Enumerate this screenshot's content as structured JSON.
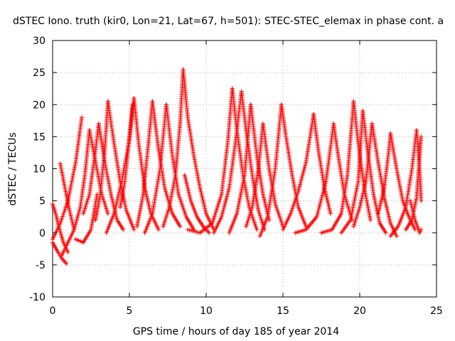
{
  "chart_data": {
    "type": "scatter",
    "title": "dSTEC Iono. truth (kir0, Lon=21, Lat=67, h=501): STEC-STEC_elemax in phase cont. a",
    "xlabel": "GPS time / hours of day 185 of year 2014",
    "ylabel": "dSTEC  / TECUs",
    "xlim": [
      0,
      25
    ],
    "ylim": [
      -10,
      30
    ],
    "xticks": [
      "0",
      "5",
      "10",
      "15",
      "20",
      "25"
    ],
    "yticks": [
      "-10",
      "-5",
      "0",
      "5",
      "10",
      "15",
      "20",
      "25",
      "30"
    ],
    "grid": true,
    "marker": "+",
    "color": "#ff0000",
    "series": [
      {
        "x": [
          0.0,
          0.3,
          0.6,
          0.9
        ],
        "y": [
          -1.5,
          -2.8,
          -4.0,
          -4.8
        ]
      },
      {
        "x": [
          0.0,
          0.2,
          0.4,
          0.7,
          1.0
        ],
        "y": [
          4.5,
          3.0,
          1.0,
          -1.5,
          -3.0
        ]
      },
      {
        "x": [
          0.5,
          0.8,
          1.1,
          1.4
        ],
        "y": [
          10.8,
          7.0,
          3.5,
          0.5
        ]
      },
      {
        "x": [
          0.0,
          0.5,
          1.0,
          1.5,
          1.9
        ],
        "y": [
          -1.0,
          1.5,
          5.0,
          11.0,
          18.0
        ]
      },
      {
        "x": [
          0.6,
          1.0,
          1.4,
          1.8,
          2.1,
          2.4
        ],
        "y": [
          -3.5,
          -1.5,
          0.5,
          4.0,
          9.0,
          16.0
        ]
      },
      {
        "x": [
          2.4,
          2.8,
          3.2,
          3.6
        ],
        "y": [
          16.0,
          11.0,
          6.0,
          3.0
        ]
      },
      {
        "x": [
          1.5,
          2.0,
          2.5,
          2.9
        ],
        "y": [
          -1.0,
          -1.5,
          0.5,
          6.0
        ]
      },
      {
        "x": [
          2.0,
          2.4,
          2.8,
          3.0
        ],
        "y": [
          3.0,
          6.0,
          13.0,
          17.0
        ]
      },
      {
        "x": [
          3.0,
          3.4,
          3.8,
          4.2,
          4.6
        ],
        "y": [
          17.0,
          11.0,
          6.0,
          2.0,
          0.5
        ]
      },
      {
        "x": [
          2.8,
          3.1,
          3.4,
          3.6
        ],
        "y": [
          2.0,
          6.0,
          13.0,
          20.5
        ]
      },
      {
        "x": [
          3.6,
          4.0,
          4.4,
          4.8,
          5.3
        ],
        "y": [
          20.5,
          14.0,
          8.0,
          3.5,
          0.5
        ]
      },
      {
        "x": [
          3.5,
          4.0,
          4.5,
          5.0,
          5.3
        ],
        "y": [
          0.0,
          3.0,
          8.0,
          14.5,
          21.0
        ]
      },
      {
        "x": [
          5.3,
          5.6,
          6.0,
          6.4,
          6.9
        ],
        "y": [
          21.0,
          14.0,
          7.0,
          3.0,
          0.5
        ]
      },
      {
        "x": [
          4.4,
          4.7,
          5.0,
          5.2
        ],
        "y": [
          4.0,
          8.0,
          15.0,
          20.0
        ]
      },
      {
        "x": [
          5.5,
          5.9,
          6.2,
          6.5
        ],
        "y": [
          1.0,
          6.0,
          13.0,
          20.5
        ]
      },
      {
        "x": [
          6.5,
          6.9,
          7.3,
          7.8,
          8.3
        ],
        "y": [
          20.5,
          13.0,
          7.0,
          3.0,
          1.0
        ]
      },
      {
        "x": [
          6.0,
          6.5,
          7.0,
          7.4
        ],
        "y": [
          0.0,
          3.0,
          10.0,
          20.0
        ]
      },
      {
        "x": [
          7.4,
          7.8,
          8.2,
          8.7,
          9.2
        ],
        "y": [
          20.0,
          12.0,
          6.0,
          2.5,
          0.5
        ]
      },
      {
        "x": [
          7.2,
          7.6,
          8.0,
          8.3,
          8.5
        ],
        "y": [
          1.0,
          4.0,
          9.0,
          17.0,
          25.5
        ]
      },
      {
        "x": [
          8.5,
          8.8,
          9.2,
          9.6,
          10.0,
          10.5
        ],
        "y": [
          25.5,
          18.0,
          12.0,
          7.0,
          3.0,
          0.5
        ]
      },
      {
        "x": [
          8.6,
          9.0,
          9.4,
          9.8,
          10.2
        ],
        "y": [
          9.0,
          5.0,
          2.5,
          1.0,
          0.0
        ]
      },
      {
        "x": [
          8.8,
          9.6,
          10.4,
          11.0,
          11.4,
          11.7
        ],
        "y": [
          0.5,
          0.0,
          1.5,
          6.0,
          14.0,
          22.5
        ]
      },
      {
        "x": [
          11.7,
          12.0,
          12.4,
          12.8,
          13.3
        ],
        "y": [
          22.5,
          16.0,
          9.0,
          4.0,
          0.5
        ]
      },
      {
        "x": [
          10.5,
          11.0,
          11.5,
          11.9,
          12.3
        ],
        "y": [
          0.0,
          2.5,
          7.0,
          14.0,
          22.0
        ]
      },
      {
        "x": [
          12.3,
          12.6,
          13.0,
          13.4,
          13.8
        ],
        "y": [
          22.0,
          16.0,
          9.0,
          3.5,
          0.5
        ]
      },
      {
        "x": [
          11.5,
          12.0,
          12.5,
          12.9
        ],
        "y": [
          0.0,
          3.0,
          9.0,
          20.0
        ]
      },
      {
        "x": [
          12.9,
          13.3,
          13.7,
          14.1
        ],
        "y": [
          20.0,
          12.0,
          6.0,
          2.0
        ]
      },
      {
        "x": [
          12.6,
          13.0,
          13.4,
          13.7
        ],
        "y": [
          1.0,
          4.0,
          10.0,
          17.0
        ]
      },
      {
        "x": [
          13.7,
          14.1,
          14.5,
          15.0
        ],
        "y": [
          17.0,
          10.0,
          4.5,
          1.0
        ]
      },
      {
        "x": [
          13.5,
          14.0,
          14.5,
          14.9
        ],
        "y": [
          -0.5,
          2.5,
          10.0,
          20.0
        ]
      },
      {
        "x": [
          14.9,
          15.2,
          15.6,
          16.0,
          16.5
        ],
        "y": [
          20.0,
          15.0,
          9.0,
          4.0,
          1.0
        ]
      },
      {
        "x": [
          15.0,
          15.5,
          16.0,
          16.5,
          17.0
        ],
        "y": [
          0.5,
          3.0,
          6.5,
          11.0,
          18.5
        ]
      },
      {
        "x": [
          17.0,
          17.3,
          17.7,
          18.1
        ],
        "y": [
          18.5,
          13.0,
          7.0,
          3.0
        ]
      },
      {
        "x": [
          15.8,
          16.5,
          17.2,
          17.8,
          18.3
        ],
        "y": [
          0.0,
          0.5,
          2.5,
          8.0,
          17.0
        ]
      },
      {
        "x": [
          18.3,
          18.6,
          19.0,
          19.5
        ],
        "y": [
          17.0,
          12.0,
          6.0,
          2.0
        ]
      },
      {
        "x": [
          17.5,
          18.2,
          18.8,
          19.2,
          19.6
        ],
        "y": [
          0.0,
          0.5,
          3.0,
          9.0,
          20.5
        ]
      },
      {
        "x": [
          19.6,
          19.9,
          20.3,
          20.7
        ],
        "y": [
          20.5,
          14.0,
          7.0,
          2.0
        ]
      },
      {
        "x": [
          18.8,
          19.4,
          19.9,
          20.2
        ],
        "y": [
          0.0,
          2.0,
          8.0,
          19.0
        ]
      },
      {
        "x": [
          20.2,
          20.5,
          20.9,
          21.3,
          21.7
        ],
        "y": [
          19.0,
          13.0,
          6.0,
          1.5,
          0.0
        ]
      },
      {
        "x": [
          19.6,
          20.0,
          20.4,
          20.8
        ],
        "y": [
          1.0,
          4.0,
          8.0,
          17.0
        ]
      },
      {
        "x": [
          20.8,
          21.2,
          21.6,
          22.0,
          22.4
        ],
        "y": [
          17.0,
          11.0,
          5.5,
          1.5,
          -0.5
        ]
      },
      {
        "x": [
          21.2,
          21.6,
          21.9,
          22.0
        ],
        "y": [
          3.0,
          7.0,
          13.0,
          15.5
        ]
      },
      {
        "x": [
          22.0,
          22.4,
          22.8,
          23.2,
          23.6
        ],
        "y": [
          15.5,
          10.0,
          5.0,
          2.5,
          0.5
        ]
      },
      {
        "x": [
          22.0,
          22.5,
          23.0,
          23.4,
          23.7
        ],
        "y": [
          -0.5,
          1.0,
          4.0,
          10.0,
          16.0
        ]
      },
      {
        "x": [
          23.7,
          23.9,
          24.0
        ],
        "y": [
          16.0,
          10.0,
          5.0
        ]
      },
      {
        "x": [
          23.0,
          23.4,
          23.7,
          24.0
        ],
        "y": [
          0.5,
          2.0,
          5.5,
          15.0
        ]
      },
      {
        "x": [
          23.3,
          23.6,
          23.9,
          24.0
        ],
        "y": [
          5.0,
          2.0,
          0.0,
          0.5
        ]
      }
    ]
  }
}
